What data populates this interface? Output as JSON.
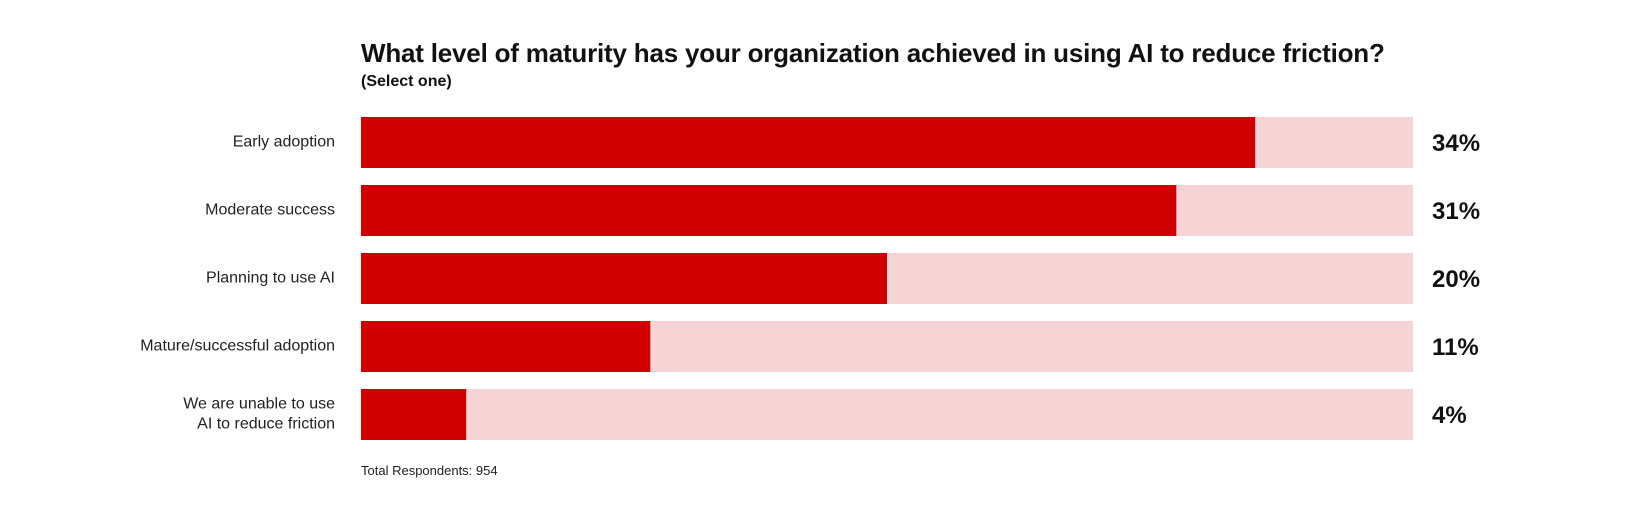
{
  "chart_data": {
    "type": "bar",
    "orientation": "horizontal",
    "title": "What level of maturity has your organization achieved in using AI to reduce friction?",
    "subtitle": "(Select one)",
    "categories": [
      [
        "Early adoption"
      ],
      [
        "Moderate success"
      ],
      [
        "Planning to use AI"
      ],
      [
        "Mature/successful adoption"
      ],
      [
        "We are unable to use",
        "AI to reduce friction"
      ]
    ],
    "values": [
      34,
      31,
      20,
      11,
      4
    ],
    "value_labels": [
      "34%",
      "31%",
      "20%",
      "11%",
      "4%"
    ],
    "xlim": [
      0,
      40
    ],
    "grid": false,
    "legend": "none",
    "footnote": "Total Respondents: 954"
  },
  "colors": {
    "bar_fill": "#d10000",
    "bar_track": "#f6d3d5",
    "label_text": "#222222",
    "value_text": "#111111"
  }
}
